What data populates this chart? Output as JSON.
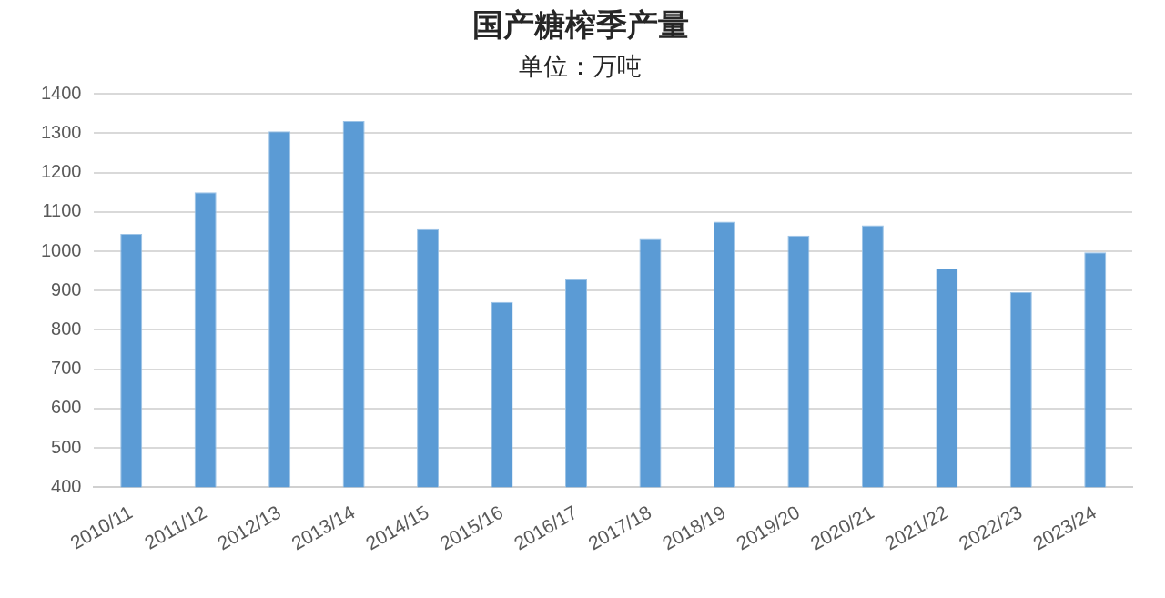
{
  "chart_data": {
    "type": "bar",
    "title": "国产糖榨季产量",
    "subtitle": "单位：万吨",
    "categories": [
      "2010/11",
      "2011/12",
      "2012/13",
      "2013/14",
      "2014/15",
      "2015/16",
      "2016/17",
      "2017/18",
      "2018/19",
      "2019/20",
      "2020/21",
      "2021/22",
      "2022/23",
      "2023/24"
    ],
    "values": [
      1044,
      1150,
      1305,
      1331,
      1056,
      871,
      928,
      1031,
      1075,
      1040,
      1066,
      956,
      896,
      997
    ],
    "color": "#5b9bd5",
    "ylim": [
      400,
      1400
    ],
    "yticks": [
      400,
      500,
      600,
      700,
      800,
      900,
      1000,
      1100,
      1200,
      1300,
      1400
    ],
    "grid": "y"
  }
}
